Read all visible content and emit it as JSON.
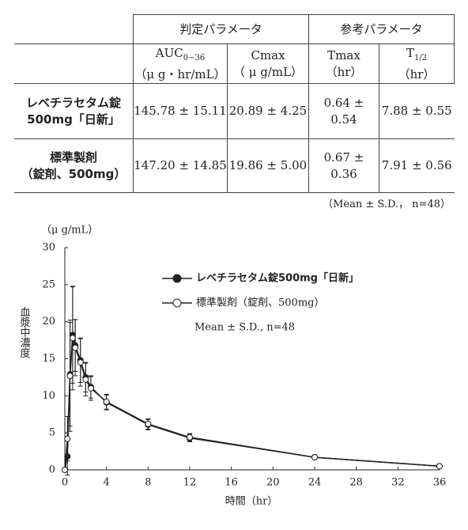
{
  "table": {
    "group_headers": [
      "判定パラメータ",
      "参考パラメータ"
    ],
    "columns": [
      {
        "name": "AUC",
        "sub": "0−36",
        "unit": "（μ g・hr/mL）"
      },
      {
        "name": "Cmax",
        "unit": "（ μ g/mL）"
      },
      {
        "name": "Tmax",
        "unit": "（hr）"
      },
      {
        "name": "T",
        "sub": "1/2",
        "unit": "（hr）"
      }
    ],
    "rows": [
      {
        "label": [
          "レベチラセタム錠",
          "500mg「日新」"
        ],
        "cells": [
          "145.78 ± 15.11",
          "20.89 ± 4.25",
          "0.64 ± 0.54",
          "7.88 ± 0.55"
        ]
      },
      {
        "label": [
          "標準製剤",
          "（錠剤、500mg）"
        ],
        "cells": [
          "147.20 ± 14.85",
          "19.86 ± 5.00",
          "0.67 ± 0.36",
          "7.91 ± 0.56"
        ]
      }
    ],
    "note": "（Mean ± S.D.， n=48）"
  },
  "chart_data": {
    "type": "line",
    "y_unit": "（μ g/mL）",
    "y_label": "血漿中濃度",
    "x_label": "時間（hr）",
    "annotation": "Mean ± S.D., n=48",
    "x": [
      0,
      0.25,
      0.5,
      0.75,
      1,
      1.5,
      2,
      2.5,
      4,
      8,
      12,
      24,
      36
    ],
    "series": [
      {
        "name": "レベチラセタム錠500mg「日新」",
        "color": "#222222",
        "filled": true,
        "values": [
          0,
          1.8,
          12.9,
          18.2,
          16.8,
          14.8,
          12.5,
          11.2,
          9.1,
          6.1,
          4.3,
          1.7,
          0.5
        ],
        "errors": [
          0,
          2.5,
          7,
          6.5,
          3.5,
          3,
          2,
          1.5,
          1,
          0.7,
          0.5,
          0.3,
          0.2
        ]
      },
      {
        "name": "標準製剤（錠剤、500mg）",
        "color": "#222222",
        "filled": false,
        "values": [
          0,
          4.2,
          12.7,
          17.8,
          16.5,
          14.5,
          12.2,
          11,
          9.2,
          6.2,
          4.4,
          1.7,
          0.5
        ],
        "errors": [
          0,
          3,
          7.5,
          7,
          3.8,
          3.2,
          2.2,
          1.6,
          1,
          0.7,
          0.5,
          0.3,
          0.2
        ]
      }
    ],
    "xlim": [
      0,
      36
    ],
    "xticks": [
      0,
      4,
      8,
      12,
      16,
      20,
      24,
      28,
      32,
      36
    ],
    "ylim": [
      0,
      30
    ],
    "yticks": [
      0,
      5,
      10,
      15,
      20,
      25,
      30
    ]
  }
}
